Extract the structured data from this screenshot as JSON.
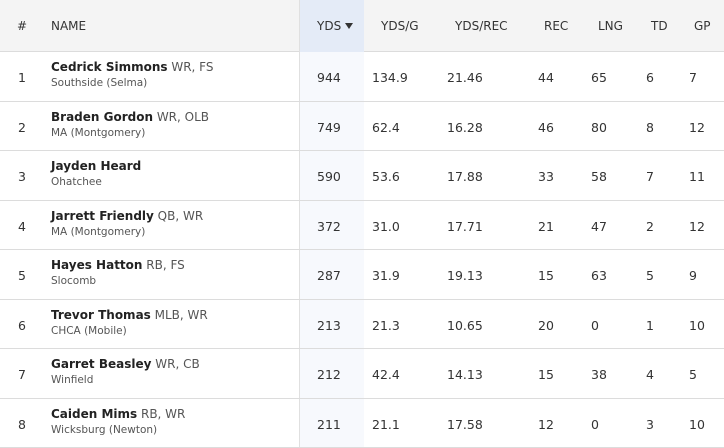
{
  "table": {
    "headers": [
      "#",
      "NAME",
      "YDS",
      "YDS/G",
      "YDS/REC",
      "REC",
      "LNG",
      "TD",
      "GP"
    ],
    "rows": [
      {
        "rank": "1",
        "name": "Cedrick Simmons",
        "positions": "WR, FS",
        "school": "Southside (Selma)",
        "stats": [
          "944",
          "134.9",
          "21.46",
          "44",
          "65",
          "6",
          "7"
        ]
      },
      {
        "rank": "2",
        "name": "Braden Gordon",
        "positions": "WR, OLB",
        "school": "MA (Montgomery)",
        "stats": [
          "749",
          "62.4",
          "16.28",
          "46",
          "80",
          "8",
          "12"
        ]
      },
      {
        "rank": "3",
        "name": "Jayden Heard",
        "school": "Ohatchee",
        "stats": [
          "590",
          "53.6",
          "17.88",
          "33",
          "58",
          "7",
          "11"
        ]
      },
      {
        "rank": "4",
        "name": "Jarrett Friendly",
        "positions": "QB, WR",
        "school": "MA (Montgomery)",
        "stats": [
          "372",
          "31.0",
          "17.71",
          "21",
          "47",
          "2",
          "12"
        ]
      },
      {
        "rank": "5",
        "name": "Hayes Hatton",
        "positions": "RB, FS",
        "school": "Slocomb",
        "stats": [
          "287",
          "31.9",
          "19.13",
          "15",
          "63",
          "5",
          "9"
        ]
      },
      {
        "rank": "6",
        "name": "Trevor Thomas",
        "positions": "MLB, WR",
        "school": "CHCA (Mobile)",
        "stats": [
          "213",
          "21.3",
          "10.65",
          "20",
          "0",
          "1",
          "10"
        ]
      },
      {
        "rank": "7",
        "name": "Garret Beasley",
        "positions": "WR, CB",
        "school": "Winfield",
        "stats": [
          "212",
          "42.4",
          "14.13",
          "15",
          "38",
          "4",
          "5"
        ]
      },
      {
        "rank": "8",
        "name": "Caiden Mims",
        "positions": "RB, WR",
        "school": "Wicksburg (Newton)",
        "stats": [
          "211",
          "21.1",
          "17.58",
          "12",
          "0",
          "3",
          "10"
        ]
      }
    ]
  }
}
